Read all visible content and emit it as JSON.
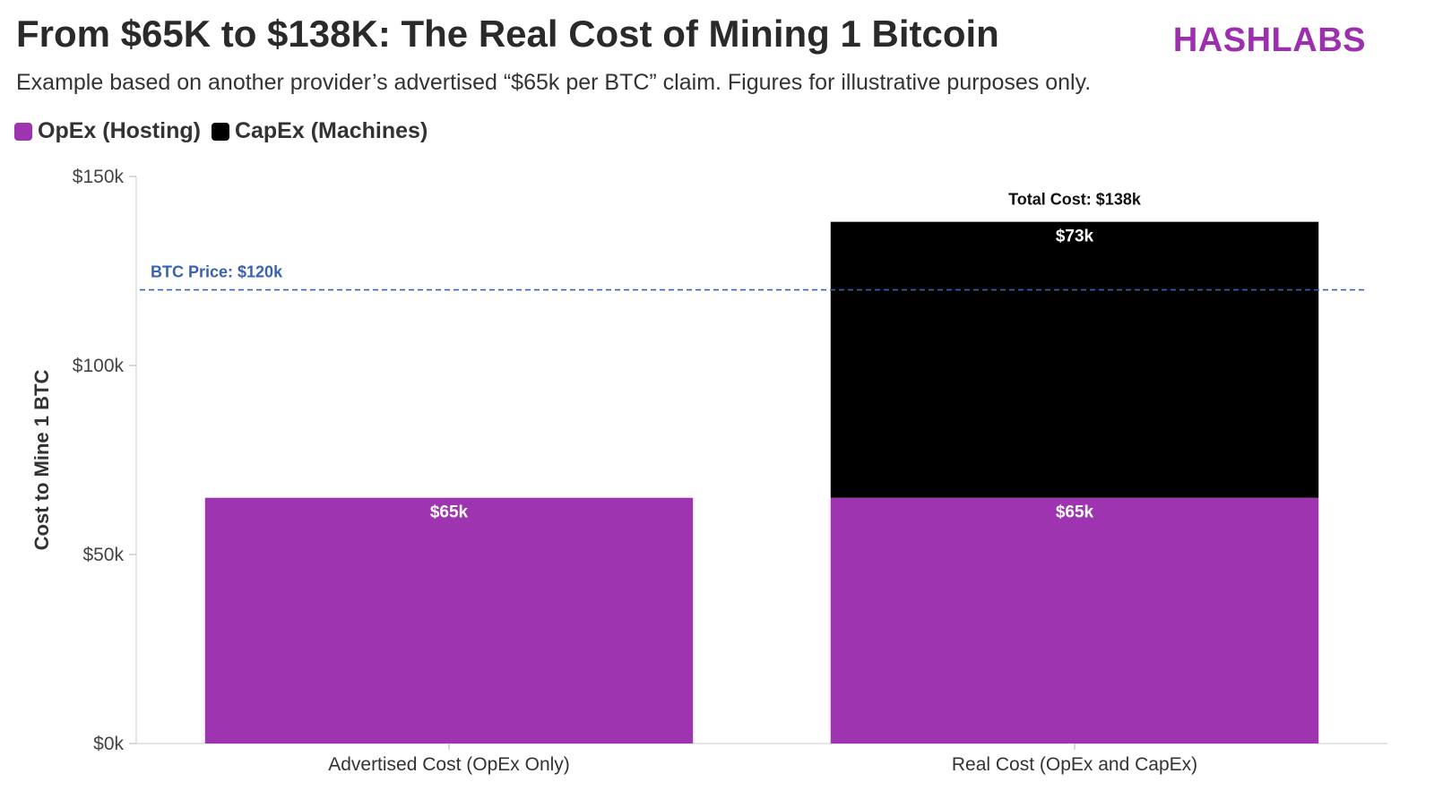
{
  "header": {
    "title": "From $65K to $138K: The Real Cost of Mining 1 Bitcoin",
    "subtitle": "Example based on another provider’s advertised “$65k per BTC” claim. Figures for illustrative purposes only.",
    "brand": "HASHLABS"
  },
  "legend": [
    {
      "label": "OpEx (Hosting)",
      "color": "#9e34b0"
    },
    {
      "label": "CapEx (Machines)",
      "color": "#000000"
    }
  ],
  "chart_data": {
    "type": "bar",
    "stacked": true,
    "categories": [
      "Advertised Cost (OpEx Only)",
      "Real Cost (OpEx and CapEx)"
    ],
    "series": [
      {
        "name": "OpEx (Hosting)",
        "values": [
          65,
          65
        ],
        "labels": [
          "$65k",
          "$65k"
        ],
        "color": "#9e34b0"
      },
      {
        "name": "CapEx (Machines)",
        "values": [
          0,
          73
        ],
        "labels": [
          "",
          "$73k"
        ],
        "color": "#000000"
      }
    ],
    "ylabel": "Cost to Mine 1 BTC",
    "ylim": [
      0,
      150
    ],
    "yticks": [
      {
        "value": 0,
        "label": "$0k"
      },
      {
        "value": 50,
        "label": "$50k"
      },
      {
        "value": 100,
        "label": "$100k"
      },
      {
        "value": 150,
        "label": "$150k"
      }
    ],
    "reference_line": {
      "value": 120,
      "label": "BTC Price: $120k",
      "color": "#3a62b4"
    },
    "total_annotation": {
      "category_index": 1,
      "label": "Total Cost: $138k"
    }
  }
}
